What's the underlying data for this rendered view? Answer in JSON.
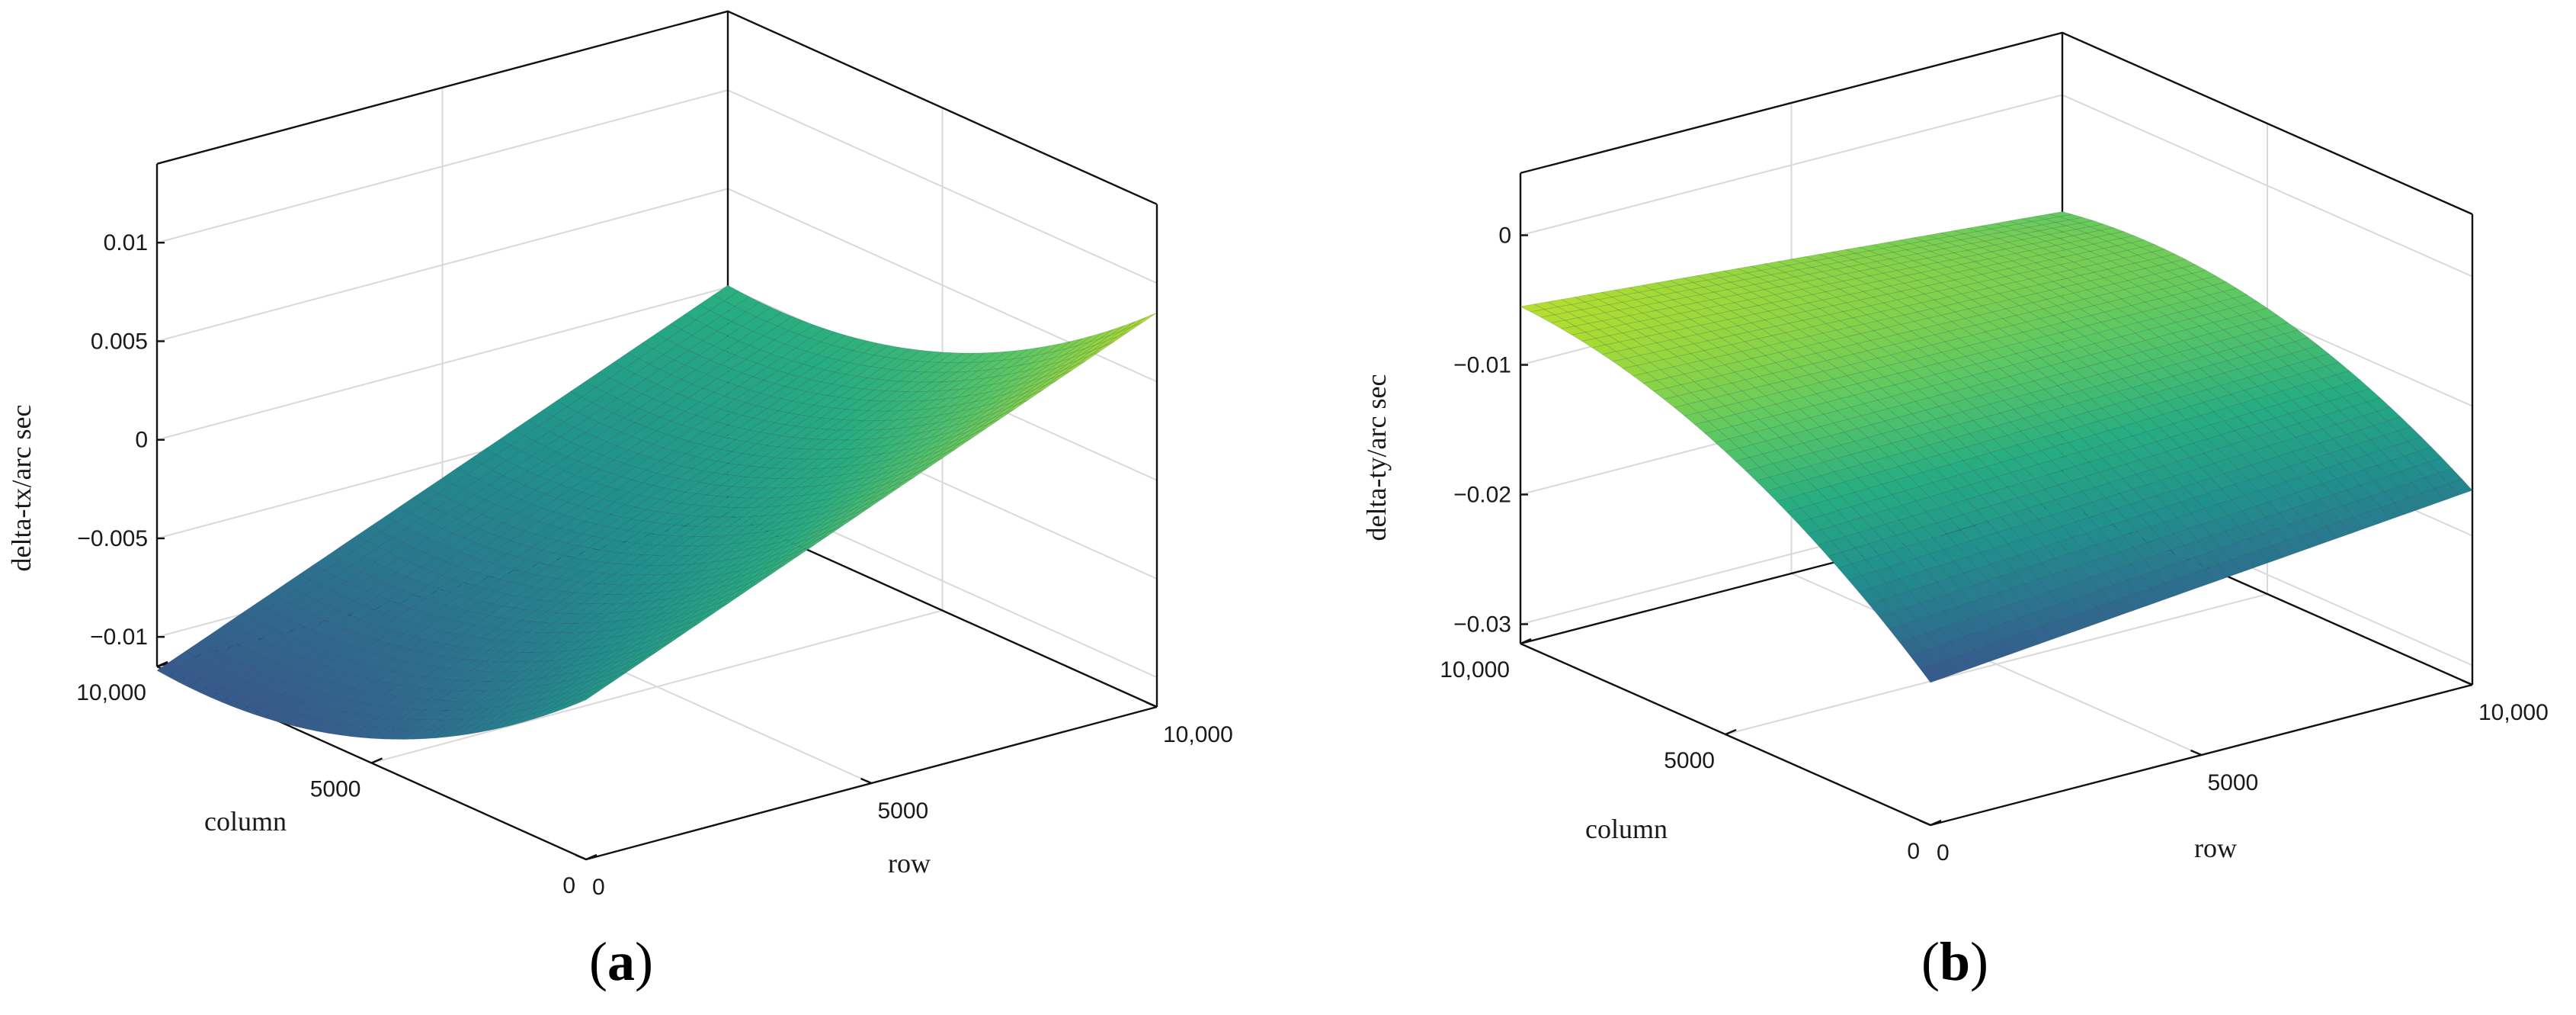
{
  "chart_data": [
    {
      "type": "surface",
      "panel_label": "a",
      "zlabel": "delta-tx/arc sec",
      "xlabel": "row",
      "ylabel": "column",
      "x_ticks": [
        "0",
        "5000",
        "10,000"
      ],
      "y_ticks": [
        "0",
        "5000",
        "10,000"
      ],
      "z_ticks": [
        "−0.01",
        "−0.005",
        "0",
        "0.005",
        "0.01"
      ],
      "x_range": [
        0,
        10000
      ],
      "y_range": [
        0,
        10000
      ],
      "z_range": [
        -0.012,
        0.014
      ],
      "corner_values": {
        "row0_col0": -0.0034,
        "row10000_col0": 0.0085,
        "row0_col10000": -0.0117,
        "row10000_col10000": 0.0001
      },
      "colormap": "viridis",
      "grid": true
    },
    {
      "type": "surface",
      "panel_label": "b",
      "zlabel": "delta-ty/arc sec",
      "xlabel": "row",
      "ylabel": "column",
      "x_ticks": [
        "0",
        "5000",
        "10,000"
      ],
      "y_ticks": [
        "0",
        "5000",
        "10,000"
      ],
      "z_ticks": [
        "−0.03",
        "−0.02",
        "−0.01",
        "0"
      ],
      "x_range": [
        0,
        10000
      ],
      "y_range": [
        0,
        10000
      ],
      "z_range": [
        -0.031,
        0.005
      ],
      "corner_values": {
        "row0_col0": -0.0205,
        "row10000_col0": -0.0165,
        "row0_col10000": -0.0055,
        "row10000_col10000": -0.009
      },
      "colormap": "viridis",
      "grid": true
    }
  ]
}
